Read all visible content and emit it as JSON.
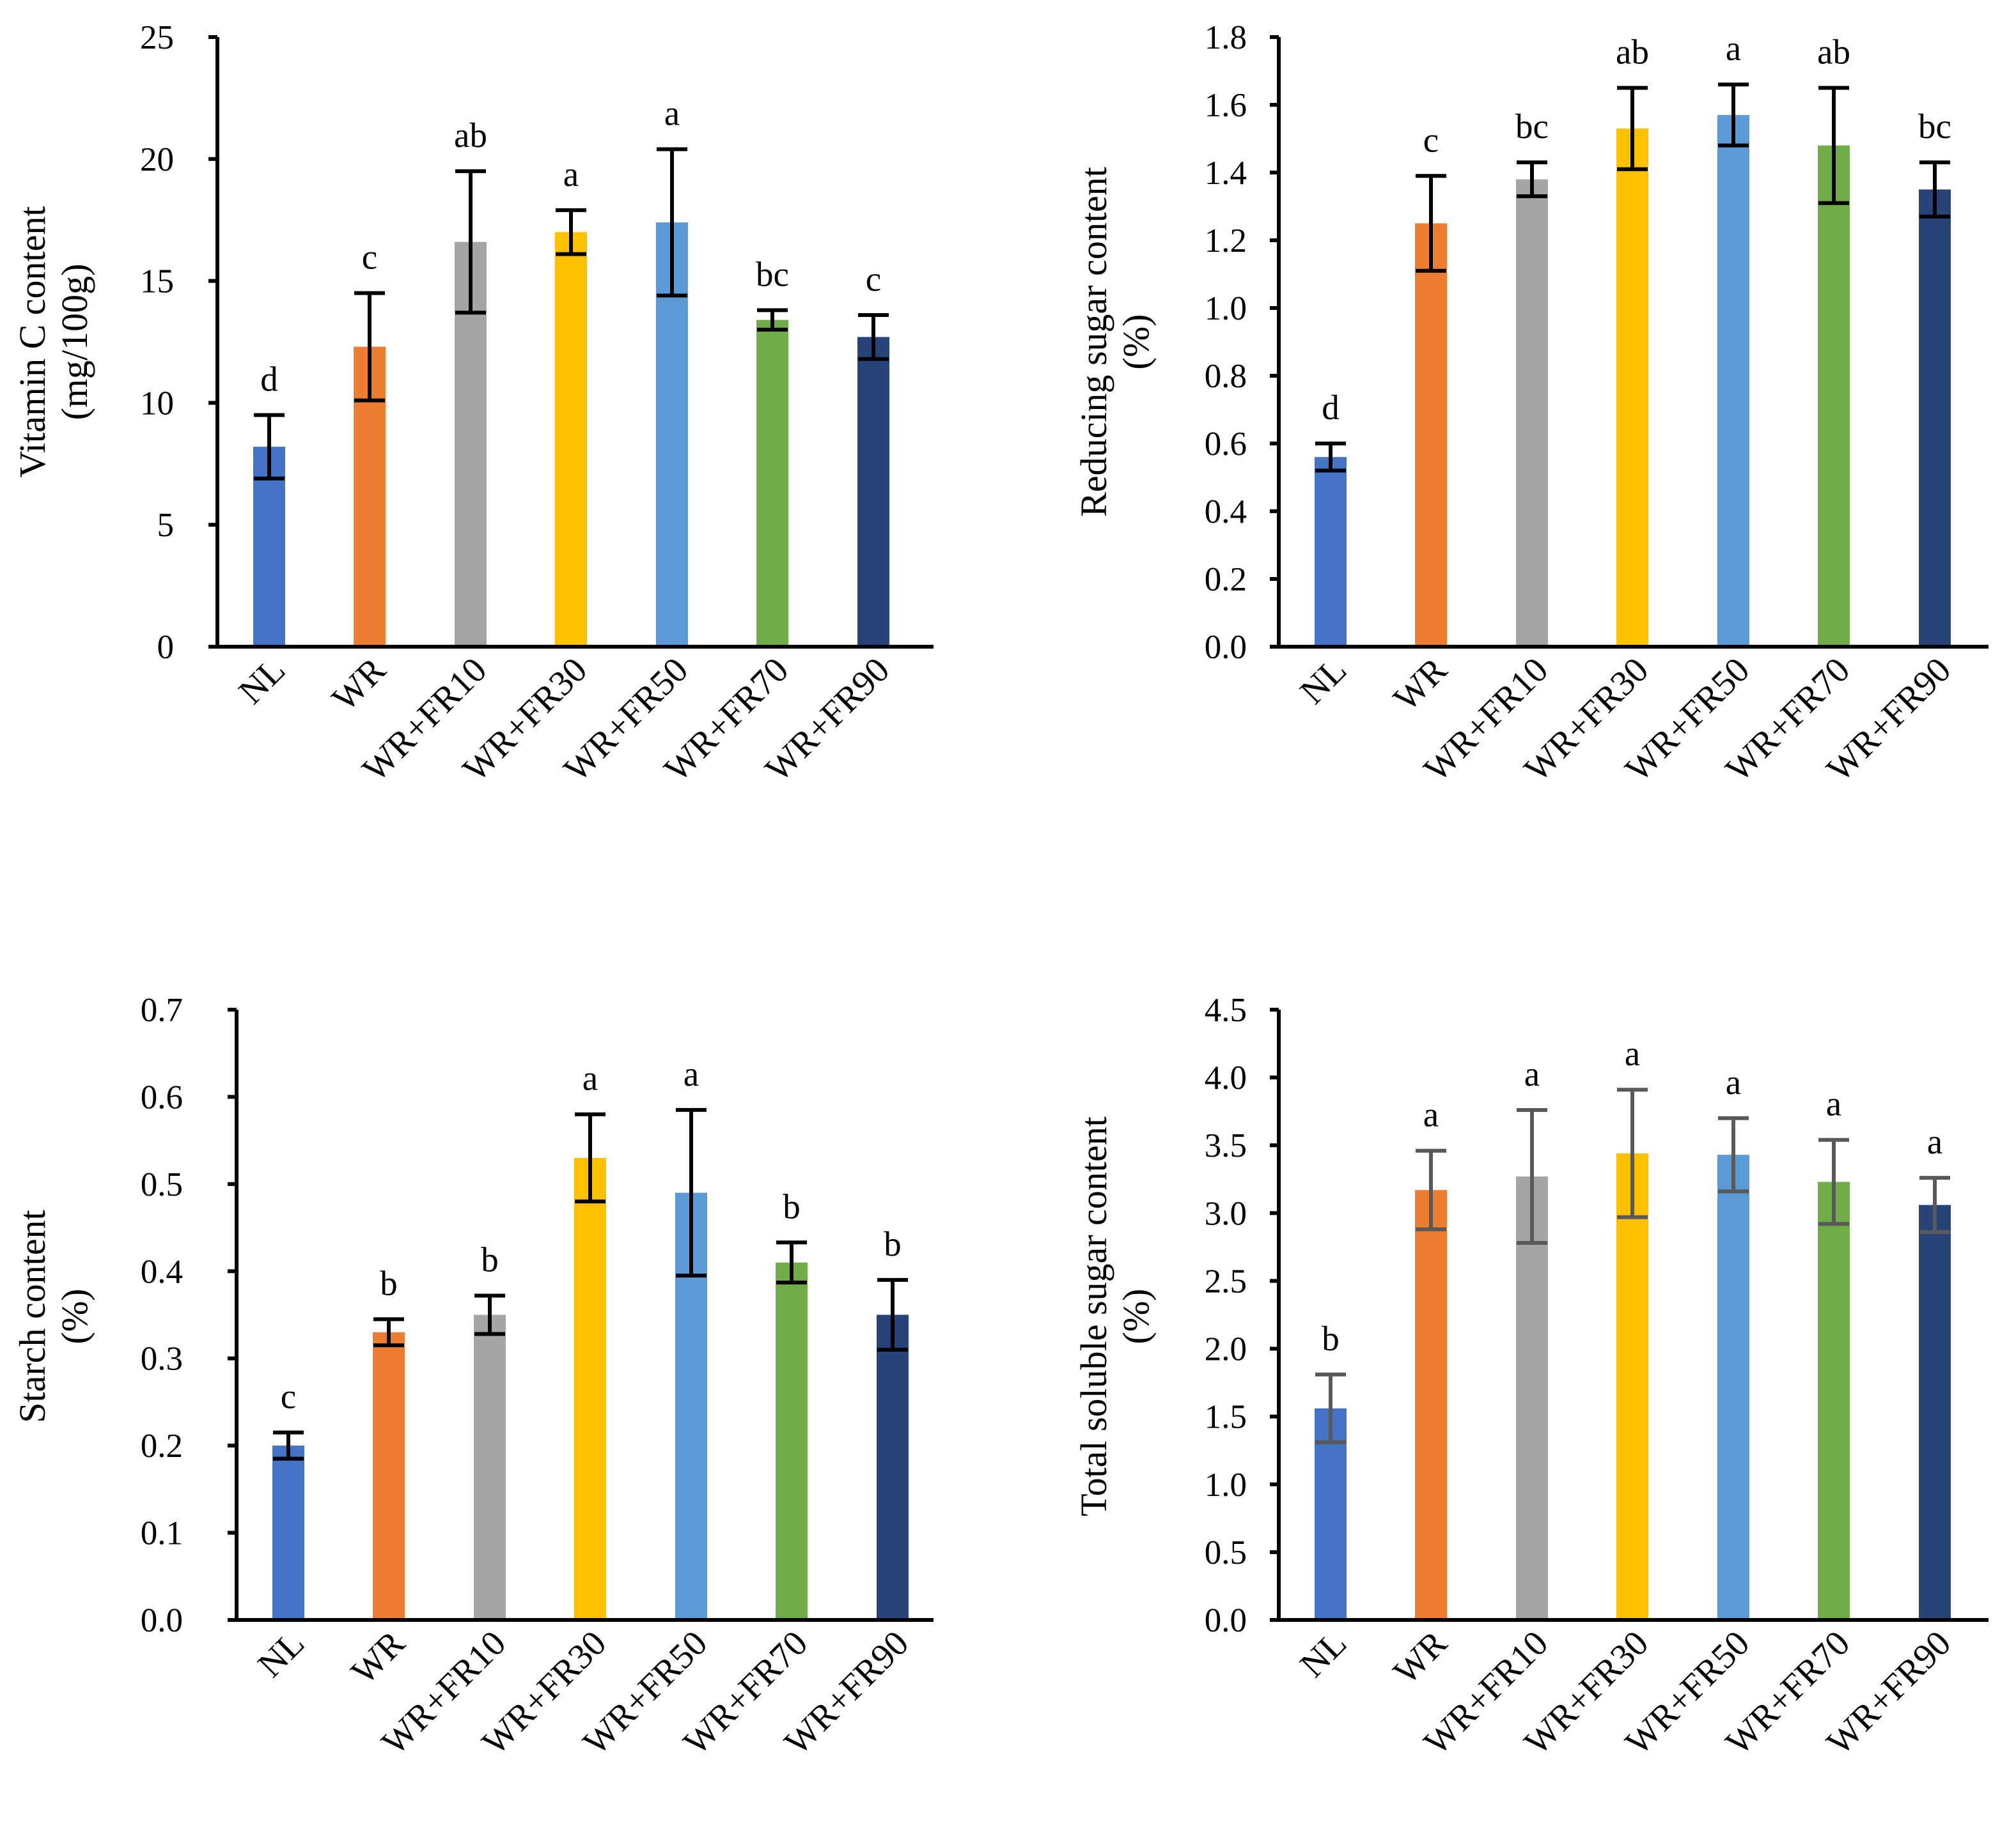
{
  "chart_data": [
    {
      "type": "bar",
      "categories": [
        "NL",
        "WR",
        "WR+FR10",
        "WR+FR30",
        "WR+FR50",
        "WR+FR70",
        "WR+FR90"
      ],
      "values": [
        8.2,
        12.3,
        16.6,
        17.0,
        17.4,
        13.4,
        12.7
      ],
      "errors": [
        1.3,
        2.2,
        2.9,
        0.9,
        3.0,
        0.4,
        0.9
      ],
      "letters": [
        "d",
        "c",
        "ab",
        "a",
        "a",
        "bc",
        "c"
      ],
      "ylabel_lines": [
        "Vitamin C content",
        "(mg/100g)"
      ],
      "ylim": [
        0,
        25
      ],
      "yticks": [
        "0",
        "5",
        "10",
        "15",
        "20",
        "25"
      ],
      "error_color": "#000000"
    },
    {
      "type": "bar",
      "categories": [
        "NL",
        "WR",
        "WR+FR10",
        "WR+FR30",
        "WR+FR50",
        "WR+FR70",
        "WR+FR90"
      ],
      "values": [
        0.56,
        1.25,
        1.38,
        1.53,
        1.57,
        1.48,
        1.35
      ],
      "errors": [
        0.04,
        0.14,
        0.05,
        0.12,
        0.09,
        0.17,
        0.08
      ],
      "letters": [
        "d",
        "c",
        "bc",
        "ab",
        "a",
        "ab",
        "bc"
      ],
      "ylabel_lines": [
        "Reducing sugar content",
        "(%)"
      ],
      "ylim": [
        0,
        1.8
      ],
      "yticks": [
        "0.0",
        "0.2",
        "0.4",
        "0.6",
        "0.8",
        "1.0",
        "1.2",
        "1.4",
        "1.6",
        "1.8"
      ],
      "error_color": "#000000"
    },
    {
      "type": "bar",
      "categories": [
        "NL",
        "WR",
        "WR+FR10",
        "WR+FR30",
        "WR+FR50",
        "WR+FR70",
        "WR+FR90"
      ],
      "values": [
        0.2,
        0.33,
        0.35,
        0.53,
        0.49,
        0.41,
        0.35
      ],
      "errors": [
        0.015,
        0.015,
        0.022,
        0.05,
        0.095,
        0.023,
        0.04
      ],
      "letters": [
        "c",
        "b",
        "b",
        "a",
        "a",
        "b",
        "b"
      ],
      "ylabel_lines": [
        "Starch content",
        "(%)"
      ],
      "ylim": [
        0,
        0.7
      ],
      "yticks": [
        "0.0",
        "0.1",
        "0.2",
        "0.3",
        "0.4",
        "0.5",
        "0.6",
        "0.7"
      ],
      "error_color": "#000000"
    },
    {
      "type": "bar",
      "categories": [
        "NL",
        "WR",
        "WR+FR10",
        "WR+FR30",
        "WR+FR50",
        "WR+FR70",
        "WR+FR90"
      ],
      "values": [
        1.56,
        3.17,
        3.27,
        3.44,
        3.43,
        3.23,
        3.06
      ],
      "errors": [
        0.25,
        0.29,
        0.49,
        0.47,
        0.27,
        0.31,
        0.2
      ],
      "letters": [
        "b",
        "a",
        "a",
        "a",
        "a",
        "a",
        "a"
      ],
      "ylabel_lines": [
        "Total soluble sugar content",
        "(%)"
      ],
      "ylim": [
        0,
        4.5
      ],
      "yticks": [
        "0.0",
        "0.5",
        "1.0",
        "1.5",
        "2.0",
        "2.5",
        "3.0",
        "3.5",
        "4.0",
        "4.5"
      ],
      "error_color": "#595959"
    }
  ],
  "colors": [
    "#4472c4",
    "#ed7d31",
    "#a5a5a5",
    "#ffc000",
    "#5b9bd5",
    "#70ad47",
    "#264478"
  ]
}
